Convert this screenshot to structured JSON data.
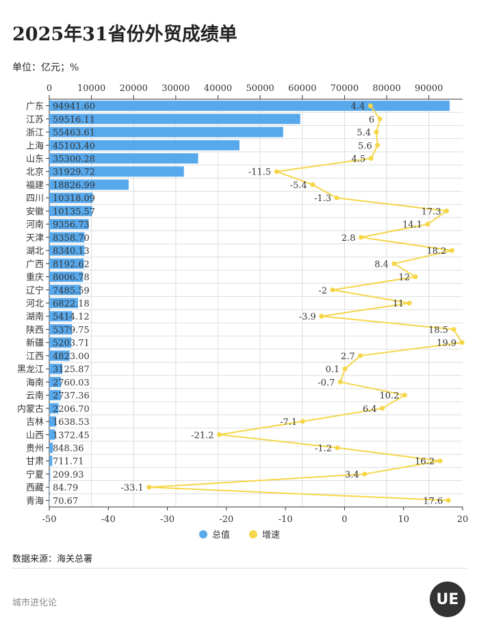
{
  "title": "2025年31省份外贸成绩单",
  "unit": "单位：亿元；%",
  "source": "数据来源：海关总署",
  "brand": "城市进化论",
  "logo": "UE",
  "colors": {
    "bar": "#58a9ec",
    "line": "#f5d648",
    "grid": "#dddddd"
  },
  "chart_data": {
    "type": "bar+line",
    "orientation": "horizontal",
    "categories": [
      "广东",
      "江苏",
      "浙江",
      "上海",
      "山东",
      "北京",
      "福建",
      "四川",
      "安徽",
      "河南",
      "天津",
      "湖北",
      "广西",
      "重庆",
      "辽宁",
      "河北",
      "湖南",
      "陕西",
      "新疆",
      "江西",
      "黑龙江",
      "海南",
      "云南",
      "内蒙古",
      "吉林",
      "山西",
      "贵州",
      "甘肃",
      "宁夏",
      "西藏",
      "青海"
    ],
    "series": [
      {
        "name": "总值",
        "type": "bar",
        "axis": "top",
        "values": [
          94941.6,
          59516.11,
          55463.61,
          45103.4,
          35300.28,
          31929.72,
          18826.99,
          10318.09,
          10135.57,
          9356.73,
          8358.7,
          8340.13,
          8192.62,
          8006.78,
          7485.59,
          6822.18,
          5414.12,
          5379.75,
          5203.71,
          4823.0,
          3125.87,
          2760.03,
          2737.36,
          2206.7,
          1638.53,
          1372.45,
          848.36,
          711.71,
          209.93,
          84.79,
          70.67
        ],
        "labels": [
          "94941.60",
          "59516.11",
          "55463.61",
          "45103.40",
          "35300.28",
          "31929.72",
          "18826.99",
          "10318.09",
          "10135.57",
          "9356.73",
          "8358.70",
          "8340.13",
          "8192.62",
          "8006.78",
          "7485.59",
          "6822.18",
          "5414.12",
          "5379.75",
          "5203.71",
          "4823.00",
          "3125.87",
          "2760.03",
          "2737.36",
          "2206.70",
          "1638.53",
          "1372.45",
          "848.36",
          "711.71",
          "209.93",
          "84.79",
          "70.67"
        ]
      },
      {
        "name": "增速",
        "type": "line",
        "axis": "bottom",
        "values": [
          4.4,
          6,
          5.4,
          5.6,
          4.5,
          -11.5,
          -5.4,
          -1.3,
          17.3,
          14.1,
          2.8,
          18.2,
          8.4,
          12,
          -2,
          11,
          -3.9,
          18.5,
          19.9,
          2.7,
          0.1,
          -0.7,
          10.2,
          6.4,
          -7.1,
          -21.2,
          -1.2,
          16.2,
          3.4,
          -33.1,
          17.6
        ]
      }
    ],
    "top_axis": {
      "range": [
        0,
        98000
      ],
      "ticks": [
        "0",
        "10000",
        "20000",
        "30000",
        "40000",
        "50000",
        "60000",
        "70000",
        "80000",
        "90000"
      ]
    },
    "bottom_axis": {
      "range": [
        -50,
        20
      ],
      "ticks": [
        "-50",
        "-40",
        "-30",
        "-20",
        "-10",
        "0",
        "10",
        "20"
      ]
    },
    "grid": true,
    "legend": "bottom"
  }
}
